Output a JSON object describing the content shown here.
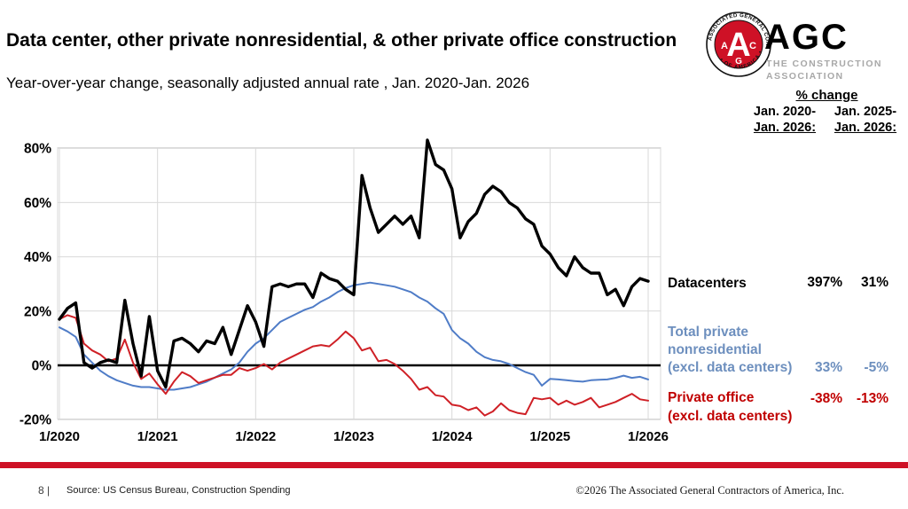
{
  "header": {
    "title": "Data center, other private nonresidential, & other private office construction",
    "subtitle": "Year-over-year change, seasonally adjusted annual rate , Jan. 2020-Jan. 2026"
  },
  "logo": {
    "acronym": "AGC",
    "tagline_line1": "THE CONSTRUCTION",
    "tagline_line2": "ASSOCIATION",
    "seal_text_top": "ASSOCIATED GENERAL CONTRACTORS",
    "seal_text_bottom": "• OF AMERICA •",
    "seal_letter_main": "A",
    "seal_letter_left": "A",
    "seal_letter_right": "C",
    "seal_letter_bottom": "G",
    "seal_red": "#ce1126"
  },
  "pct_change_table": {
    "heading": "% change",
    "col1_line1": "Jan. 2020-",
    "col1_line2": "Jan. 2026:",
    "col2_line1": "Jan. 2025-",
    "col2_line2": "Jan. 2026:"
  },
  "legend": {
    "datacenters": {
      "label": "Datacenters",
      "change_2020_2026": "397%",
      "change_2025_2026": "31%",
      "color": "#000000"
    },
    "nonresidential": {
      "label_line1": "Total private",
      "label_line2": "nonresidential",
      "label_line3": "(excl. data centers)",
      "change_2020_2026": "33%",
      "change_2025_2026": "-5%",
      "color": "#6d8fbe"
    },
    "office": {
      "label_line1": "Private office",
      "label_line2": "(excl. data centers)",
      "change_2020_2026": "-38%",
      "change_2025_2026": "-13%",
      "color": "#c00000"
    }
  },
  "chart_data": {
    "type": "line",
    "title": "Data center, other private nonresidential, & other private office construction",
    "subtitle": "Year-over-year change, seasonally adjusted annual rate, Jan. 2020-Jan. 2026",
    "x_unit": "month",
    "x_range": "Jan 2020 - Jan 2026 (73 monthly points)",
    "x_tick_labels": [
      "1/2020",
      "1/2021",
      "1/2022",
      "1/2023",
      "1/2024",
      "1/2025",
      "1/2026"
    ],
    "y_tick_values": [
      80,
      60,
      40,
      20,
      0,
      -20
    ],
    "y_tick_labels": [
      "80%",
      "60%",
      "40%",
      "20%",
      "0%",
      "-20%"
    ],
    "ylim": [
      -20,
      80
    ],
    "grid": true,
    "zero_axis": true,
    "legend_position": "right-annotations",
    "series": [
      {
        "name": "Datacenters",
        "color": "#000000",
        "stroke_width": 3.4,
        "values": [
          17,
          21,
          23,
          1,
          -1,
          1,
          2,
          1,
          24,
          8,
          -4,
          18,
          -2,
          -8,
          9,
          10,
          8,
          5,
          9,
          8,
          14,
          4,
          13,
          22,
          16,
          7,
          29,
          30,
          29,
          30,
          30,
          25,
          34,
          32,
          31,
          28,
          26,
          70,
          58,
          49,
          52,
          55,
          52,
          55,
          47,
          83,
          74,
          72,
          65,
          47,
          53,
          56,
          63,
          66,
          64,
          60,
          58,
          54,
          52,
          44,
          41,
          36,
          33,
          40,
          36,
          34,
          34,
          26,
          28,
          22,
          29,
          32,
          31
        ]
      },
      {
        "name": "Total private nonresidential (excl. data centers)",
        "color": "#4f7cc7",
        "stroke_width": 2,
        "values": [
          14,
          12.5,
          10.5,
          4,
          1,
          -2,
          -4,
          -5.5,
          -6.5,
          -7.5,
          -8,
          -8,
          -8.5,
          -9,
          -9,
          -8.5,
          -8,
          -7,
          -6,
          -4.5,
          -3,
          -1.5,
          1,
          5,
          8,
          10,
          13,
          16,
          17.5,
          19,
          20.5,
          21.5,
          23.5,
          25,
          27,
          28.5,
          29.5,
          30,
          30.5,
          30,
          29.5,
          29,
          28,
          27,
          25,
          23.5,
          21,
          19,
          13,
          10,
          8,
          5,
          3,
          2,
          1.5,
          0.5,
          -1,
          -2.5,
          -3.5,
          -7.5,
          -5,
          -5.2,
          -5.5,
          -5.8,
          -6,
          -5.5,
          -5.3,
          -5.2,
          -4.6,
          -3.8,
          -4.6,
          -4.2,
          -5.2
        ]
      },
      {
        "name": "Private office (excl. data centers)",
        "color": "#cf2026",
        "stroke_width": 2,
        "values": [
          17,
          18.5,
          17.5,
          8,
          5.5,
          4,
          1.5,
          2.5,
          9.5,
          1,
          -5,
          -3,
          -7,
          -10.5,
          -6,
          -2.5,
          -4,
          -6.5,
          -5.5,
          -4.5,
          -3.5,
          -3.5,
          -1,
          -2,
          -1,
          0.5,
          -1.5,
          1,
          2.5,
          4,
          5.5,
          7,
          7.5,
          7,
          9.5,
          12.5,
          10,
          5.5,
          6.5,
          1.5,
          2,
          0.5,
          -2,
          -5,
          -9,
          -8,
          -11,
          -11.5,
          -14.5,
          -15,
          -16.5,
          -15.5,
          -18.5,
          -17,
          -14,
          -16.5,
          -17.5,
          -18,
          -12,
          -12.5,
          -12,
          -14.5,
          -13,
          -14.5,
          -13.5,
          -12,
          -15.5,
          -14.5,
          -13.5,
          -12,
          -10.5,
          -12.5,
          -13
        ]
      }
    ]
  },
  "footer": {
    "bar_color": "#ce1126",
    "page_number": "8 |",
    "source": "Source: US Census Bureau, Construction Spending",
    "copyright": "©2026 The Associated General Contractors of America, Inc."
  }
}
